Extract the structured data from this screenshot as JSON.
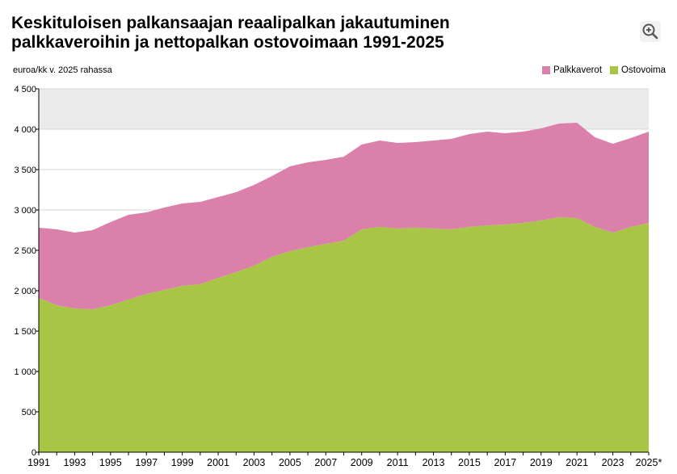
{
  "title_lines": [
    "Keskituloisen palkansaajan reaalipalkan jakautuminen",
    "palkkaveroihin ja nettopalkan ostovoimaan 1991-2025"
  ],
  "zoom_icon": "zoom-in-icon",
  "unit_label": "euroa/kk v. 2025 rahassa",
  "legend": [
    {
      "name": "Palkkaverot",
      "color": "#da80ab"
    },
    {
      "name": "Ostovoima",
      "color": "#a8c545"
    }
  ],
  "chart_data": {
    "type": "area",
    "stacked": true,
    "title": "Keskituloisen palkansaajan reaalipalkan jakautuminen palkkaveroihin ja nettopalkan ostovoimaan 1991-2025",
    "ylabel": "euroa/kk v. 2025 rahassa",
    "xlabel": "",
    "ylim": [
      0,
      4500
    ],
    "yticks": [
      0,
      500,
      1000,
      1500,
      2000,
      2500,
      3000,
      3500,
      4000,
      4500
    ],
    "ytick_labels": [
      "0",
      "500",
      "1 000",
      "1 500",
      "2 000",
      "2 500",
      "3 000",
      "3 500",
      "4 000",
      "4 500"
    ],
    "x": [
      1991,
      1992,
      1993,
      1994,
      1995,
      1996,
      1997,
      1998,
      1999,
      2000,
      2001,
      2002,
      2003,
      2004,
      2005,
      2006,
      2007,
      2008,
      2009,
      2010,
      2011,
      2012,
      2013,
      2014,
      2015,
      2016,
      2017,
      2018,
      2019,
      2020,
      2021,
      2022,
      2023,
      2024,
      2025
    ],
    "xtick_labels": [
      "1991",
      "1993",
      "1995",
      "1997",
      "1999",
      "2001",
      "2003",
      "2005",
      "2007",
      "2009",
      "2011",
      "2013",
      "2015",
      "2017",
      "2019",
      "2021",
      "2023",
      "2025*"
    ],
    "xtick_years": [
      1991,
      1993,
      1995,
      1997,
      1999,
      2001,
      2003,
      2005,
      2007,
      2009,
      2011,
      2013,
      2015,
      2017,
      2019,
      2021,
      2023,
      2025
    ],
    "grid_band_min": 4000,
    "series": [
      {
        "name": "Ostovoima",
        "color": "#a8c545",
        "values": [
          1910,
          1820,
          1780,
          1770,
          1820,
          1890,
          1960,
          2010,
          2060,
          2080,
          2160,
          2230,
          2310,
          2420,
          2490,
          2540,
          2580,
          2620,
          2760,
          2790,
          2770,
          2780,
          2770,
          2760,
          2790,
          2810,
          2820,
          2840,
          2870,
          2910,
          2900,
          2790,
          2720,
          2790,
          2840
        ]
      },
      {
        "name": "Palkkaverot",
        "color": "#da80ab",
        "values": [
          870,
          940,
          940,
          980,
          1030,
          1050,
          1010,
          1020,
          1020,
          1020,
          1000,
          990,
          1000,
          1000,
          1050,
          1050,
          1040,
          1040,
          1050,
          1070,
          1060,
          1060,
          1090,
          1120,
          1150,
          1160,
          1130,
          1130,
          1140,
          1160,
          1180,
          1110,
          1100,
          1100,
          1130
        ]
      }
    ]
  }
}
